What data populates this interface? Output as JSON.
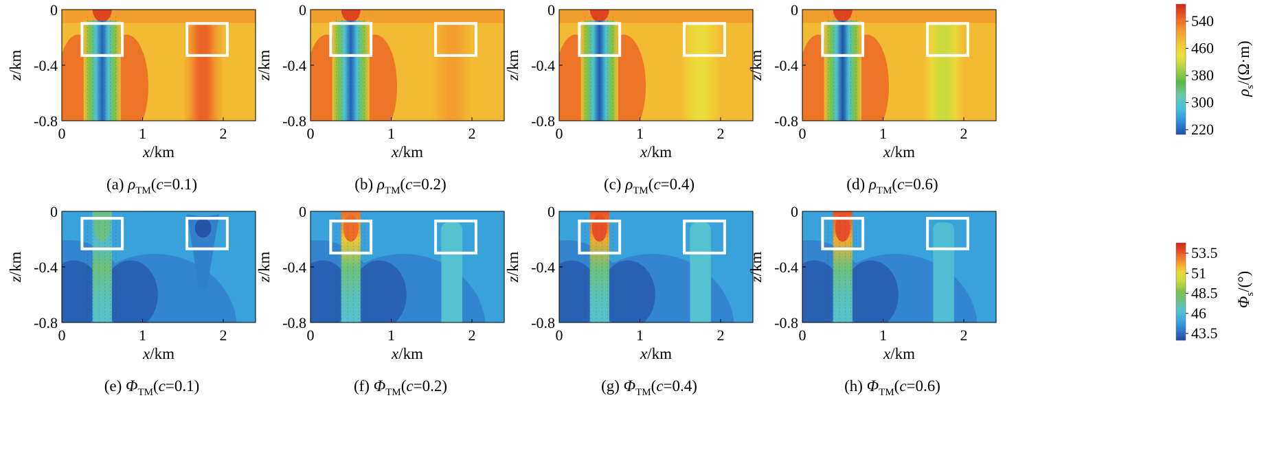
{
  "figure": {
    "panels": [
      {
        "id": "a",
        "letter": "(a)",
        "symbol": "ρ",
        "sub": "TM",
        "cond": "(c=0.1)",
        "kind": "rho",
        "c": 0.1
      },
      {
        "id": "b",
        "letter": "(b)",
        "symbol": "ρ",
        "sub": "TM",
        "cond": "(c=0.2)",
        "kind": "rho",
        "c": 0.2
      },
      {
        "id": "c",
        "letter": "(c)",
        "symbol": "ρ",
        "sub": "TM",
        "cond": "(c=0.4)",
        "kind": "rho",
        "c": 0.4
      },
      {
        "id": "d",
        "letter": "(d)",
        "symbol": "ρ",
        "sub": "TM",
        "cond": "(c=0.6)",
        "kind": "rho",
        "c": 0.6
      },
      {
        "id": "e",
        "letter": "(e)",
        "symbol": "Φ",
        "sub": "TM",
        "cond": "(c=0.1)",
        "kind": "phi",
        "c": 0.1
      },
      {
        "id": "f",
        "letter": "(f)",
        "symbol": "Φ",
        "sub": "TM",
        "cond": "(c=0.2)",
        "kind": "phi",
        "c": 0.2
      },
      {
        "id": "g",
        "letter": "(g)",
        "symbol": "Φ",
        "sub": "TM",
        "cond": "(c=0.4)",
        "kind": "phi",
        "c": 0.4
      },
      {
        "id": "h",
        "letter": "(h)",
        "symbol": "Φ",
        "sub": "TM",
        "cond": "(c=0.6)",
        "kind": "phi",
        "c": 0.6
      }
    ],
    "colorbars": [
      {
        "kind": "rho",
        "label": "ρs/(Ω·m)",
        "ticks": [
          "540",
          "460",
          "380",
          "300",
          "220"
        ],
        "range": [
          220,
          580
        ]
      },
      {
        "kind": "phi",
        "label": "Φs/(°)",
        "ticks": [
          "53.5",
          "51",
          "48.5",
          "46",
          "43.5"
        ],
        "range": [
          43.5,
          54.5
        ]
      }
    ]
  },
  "chart_data": [
    {
      "type": "heatmap",
      "panel": "(a) ρTM(c=0.1)",
      "xlabel": "x/km",
      "ylabel": "z/km",
      "xlim": [
        0,
        2.4
      ],
      "ylim": [
        -0.8,
        0
      ],
      "xticks": [
        "0",
        "1",
        "2"
      ],
      "yticks": [
        "0",
        "-0.4",
        "-0.8"
      ],
      "boxes_km": [
        [
          0.25,
          -0.1,
          0.75,
          -0.33
        ],
        [
          1.55,
          -0.1,
          2.05,
          -0.33
        ]
      ],
      "anomalies": [
        {
          "x": 0.5,
          "value": 230,
          "note": "conductive"
        },
        {
          "x": 1.75,
          "value": 540,
          "note": "resistive"
        }
      ],
      "background": 480
    },
    {
      "type": "heatmap",
      "panel": "(b) ρTM(c=0.2)",
      "xlabel": "x/km",
      "ylabel": "z/km",
      "xlim": [
        0,
        2.4
      ],
      "ylim": [
        -0.8,
        0
      ],
      "xticks": [
        "0",
        "1",
        "2"
      ],
      "yticks": [
        "0",
        "-0.4",
        "-0.8"
      ],
      "boxes_km": [
        [
          0.25,
          -0.1,
          0.75,
          -0.33
        ],
        [
          1.55,
          -0.1,
          2.05,
          -0.33
        ]
      ],
      "anomalies": [
        {
          "x": 0.5,
          "value": 230
        },
        {
          "x": 1.75,
          "value": 505
        }
      ],
      "background": 480
    },
    {
      "type": "heatmap",
      "panel": "(c) ρTM(c=0.4)",
      "xlabel": "x/km",
      "ylabel": "z/km",
      "xlim": [
        0,
        2.4
      ],
      "ylim": [
        -0.8,
        0
      ],
      "xticks": [
        "0",
        "1",
        "2"
      ],
      "yticks": [
        "0",
        "-0.4",
        "-0.8"
      ],
      "boxes_km": [
        [
          0.25,
          -0.1,
          0.75,
          -0.33
        ],
        [
          1.55,
          -0.1,
          2.05,
          -0.33
        ]
      ],
      "anomalies": [
        {
          "x": 0.5,
          "value": 225
        },
        {
          "x": 1.75,
          "value": 445
        }
      ],
      "background": 480
    },
    {
      "type": "heatmap",
      "panel": "(d) ρTM(c=0.6)",
      "xlabel": "x/km",
      "ylabel": "z/km",
      "xlim": [
        0,
        2.4
      ],
      "ylim": [
        -0.8,
        0
      ],
      "xticks": [
        "0",
        "1",
        "2"
      ],
      "yticks": [
        "0",
        "-0.4",
        "-0.8"
      ],
      "boxes_km": [
        [
          0.25,
          -0.1,
          0.75,
          -0.33
        ],
        [
          1.55,
          -0.1,
          2.05,
          -0.33
        ]
      ],
      "anomalies": [
        {
          "x": 0.5,
          "value": 220
        },
        {
          "x": 1.75,
          "value": 420
        }
      ],
      "background": 480
    },
    {
      "type": "heatmap",
      "panel": "(e) ΦTM(c=0.1)",
      "xlabel": "x/km",
      "ylabel": "z/km",
      "xlim": [
        0,
        2.4
      ],
      "ylim": [
        -0.8,
        0
      ],
      "xticks": [
        "0",
        "1",
        "2"
      ],
      "yticks": [
        "0",
        "-0.4",
        "-0.8"
      ],
      "boxes_km": [
        [
          0.25,
          -0.05,
          0.75,
          -0.27
        ],
        [
          1.55,
          -0.05,
          2.05,
          -0.27
        ]
      ],
      "anomalies": [
        {
          "x": 0.5,
          "value": 48
        },
        {
          "x": 1.75,
          "value": 43.8
        }
      ],
      "background": 45.5
    },
    {
      "type": "heatmap",
      "panel": "(f) ΦTM(c=0.2)",
      "xlabel": "x/km",
      "ylabel": "z/km",
      "xlim": [
        0,
        2.4
      ],
      "ylim": [
        -0.8,
        0
      ],
      "xticks": [
        "0",
        "1",
        "2"
      ],
      "yticks": [
        "0",
        "-0.4",
        "-0.8"
      ],
      "boxes_km": [
        [
          0.25,
          -0.07,
          0.75,
          -0.3
        ],
        [
          1.55,
          -0.07,
          2.05,
          -0.3
        ]
      ],
      "anomalies": [
        {
          "x": 0.5,
          "value": 53
        },
        {
          "x": 1.75,
          "value": 46.8
        }
      ],
      "background": 45.5
    },
    {
      "type": "heatmap",
      "panel": "(g) ΦTM(c=0.4)",
      "xlabel": "x/km",
      "ylabel": "z/km",
      "xlim": [
        0,
        2.4
      ],
      "ylim": [
        -0.8,
        0
      ],
      "xticks": [
        "0",
        "1",
        "2"
      ],
      "yticks": [
        "0",
        "-0.4",
        "-0.8"
      ],
      "boxes_km": [
        [
          0.25,
          -0.07,
          0.75,
          -0.3
        ],
        [
          1.55,
          -0.07,
          2.05,
          -0.3
        ]
      ],
      "anomalies": [
        {
          "x": 0.5,
          "value": 53.5
        },
        {
          "x": 1.75,
          "value": 46.8
        }
      ],
      "background": 45.5
    },
    {
      "type": "heatmap",
      "panel": "(h) ΦTM(c=0.6)",
      "xlabel": "x/km",
      "ylabel": "z/km",
      "xlim": [
        0,
        2.4
      ],
      "ylim": [
        -0.8,
        0
      ],
      "xticks": [
        "0",
        "1",
        "2"
      ],
      "yticks": [
        "0",
        "-0.4",
        "-0.8"
      ],
      "boxes_km": [
        [
          0.25,
          -0.05,
          0.75,
          -0.27
        ],
        [
          1.55,
          -0.05,
          2.05,
          -0.27
        ]
      ],
      "anomalies": [
        {
          "x": 0.5,
          "value": 53.5
        },
        {
          "x": 1.75,
          "value": 46.6
        }
      ],
      "background": 45.5
    }
  ]
}
